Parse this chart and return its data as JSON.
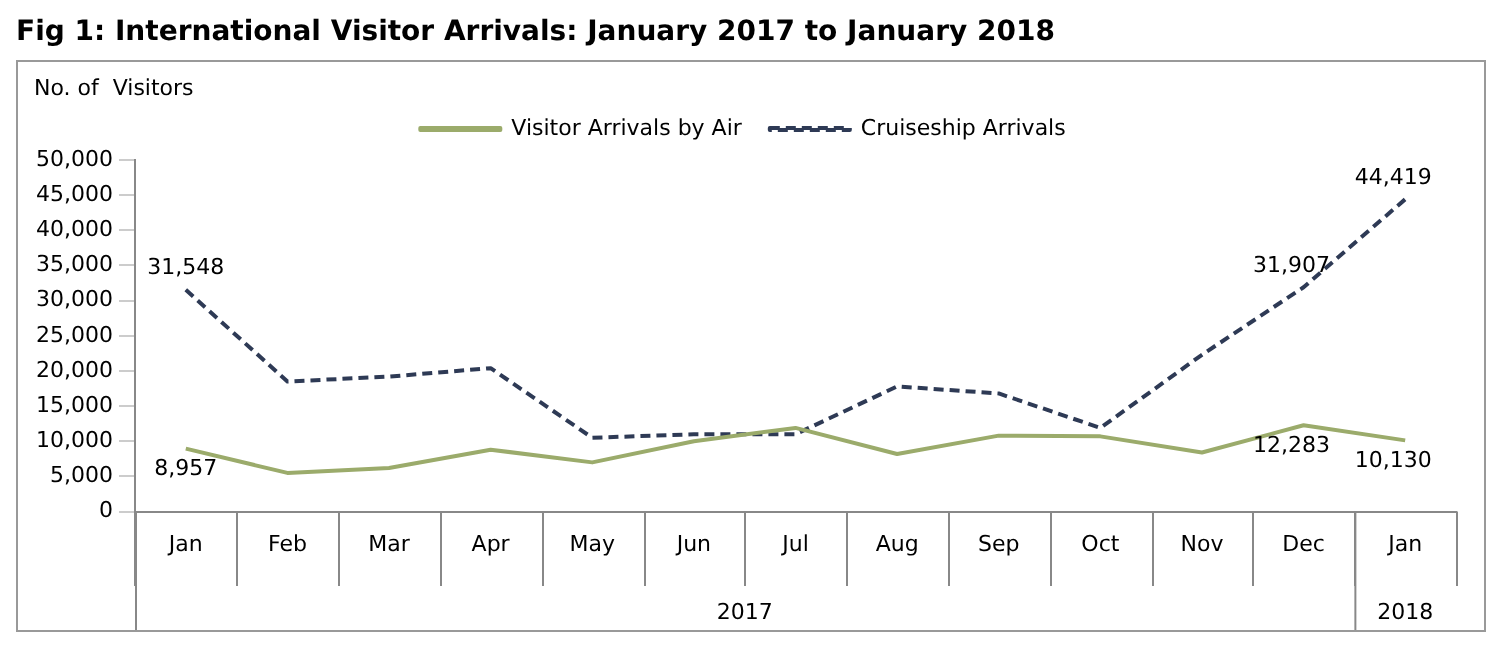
{
  "chart_data": {
    "type": "line",
    "title": "Fig 1: International Visitor Arrivals: January 2017 to January 2018",
    "ylabel": "No. of  Visitors",
    "categories": [
      "Jan",
      "Feb",
      "Mar",
      "Apr",
      "May",
      "Jun",
      "Jul",
      "Aug",
      "Sep",
      "Oct",
      "Nov",
      "Dec",
      "Jan"
    ],
    "annotations": [
      "2017",
      "2018"
    ],
    "series": [
      {
        "name": "Visitor Arrivals by Air",
        "color": "#9bab6b",
        "line_style": "solid",
        "values": [
          8957,
          5500,
          6200,
          8800,
          7000,
          10000,
          11900,
          8200,
          10800,
          10700,
          8400,
          12283,
          10130
        ],
        "value_labels": [
          "8,957",
          null,
          null,
          null,
          null,
          null,
          null,
          null,
          null,
          null,
          null,
          "12,283",
          "10,130"
        ]
      },
      {
        "name": "Cruiseship Arrivals",
        "color": "#2e3a55",
        "line_style": "dashed",
        "values": [
          31548,
          18500,
          19200,
          20400,
          10500,
          11000,
          11000,
          17800,
          16800,
          11900,
          22300,
          31907,
          44419
        ],
        "value_labels": [
          "31,548",
          null,
          null,
          null,
          null,
          null,
          null,
          null,
          null,
          null,
          null,
          "31,907",
          "44,419"
        ]
      }
    ],
    "ylim": [
      0,
      50000
    ],
    "yticks": [
      0,
      {
        "value": 5000,
        "label": "5,000"
      },
      {
        "value": 10000,
        "label": "10,000"
      },
      {
        "value": 15000,
        "label": "15,000"
      },
      {
        "value": 20000,
        "label": "20,000"
      },
      {
        "value": 25000,
        "label": "25,000"
      },
      {
        "value": 30000,
        "label": "30,000"
      },
      {
        "value": 35000,
        "label": "35,000"
      },
      {
        "value": 40000,
        "label": "40,000"
      },
      {
        "value": 45000,
        "label": "45,000"
      },
      {
        "value": 50000,
        "label": "50,000"
      }
    ],
    "grid": false,
    "legend": "top",
    "marker": "none"
  }
}
